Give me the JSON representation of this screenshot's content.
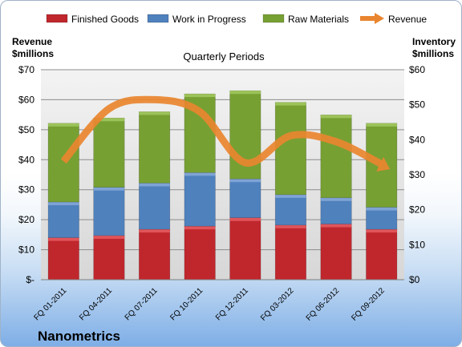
{
  "chart_data": {
    "type": "bar",
    "subtitle": "Quarterly Periods",
    "company": "Nanometrics",
    "left_axis_label": [
      "Revenue",
      "$millions"
    ],
    "right_axis_label": [
      "Inventory",
      "$millions"
    ],
    "categories": [
      "FQ 01-2011",
      "FQ 04-2011",
      "FQ 07-2011",
      "FQ 10-2011",
      "FQ 12-2011",
      "FQ 03-2012",
      "FQ 06-2012",
      "FQ 09-2012"
    ],
    "stacked_series": [
      {
        "name": "Finished Goods",
        "color": "#c0272d",
        "values": [
          12,
          12.6,
          14.4,
          15.3,
          17.7,
          15.6,
          15.9,
          14.4
        ]
      },
      {
        "name": "Work in Progress",
        "color": "#4f81bd",
        "values": [
          10.2,
          13.8,
          13.2,
          15.3,
          11.1,
          8.7,
          7.5,
          6.3
        ]
      },
      {
        "name": "Raw Materials",
        "color": "#77a033",
        "values": [
          22.5,
          19.8,
          20.4,
          22.5,
          25.2,
          26.4,
          23.7,
          24.0
        ]
      }
    ],
    "line_series": {
      "name": "Revenue",
      "color": "#e9852f",
      "values": [
        39.5,
        57,
        60,
        56,
        39,
        48,
        46,
        38.5
      ]
    },
    "left_axis": {
      "ylim": [
        0,
        70
      ],
      "ticks": [
        0,
        10,
        20,
        30,
        40,
        50,
        60,
        70
      ],
      "tick_labels": [
        "$-",
        "$10",
        "$20",
        "$30",
        "$40",
        "$50",
        "$60",
        "$70"
      ]
    },
    "right_axis": {
      "ylim": [
        0,
        60
      ],
      "ticks": [
        0,
        10,
        20,
        30,
        40,
        50,
        60
      ],
      "tick_labels": [
        "$0",
        "$10",
        "$20",
        "$30",
        "$40",
        "$50",
        "$60"
      ]
    },
    "grid": true,
    "legend_position": "top"
  }
}
